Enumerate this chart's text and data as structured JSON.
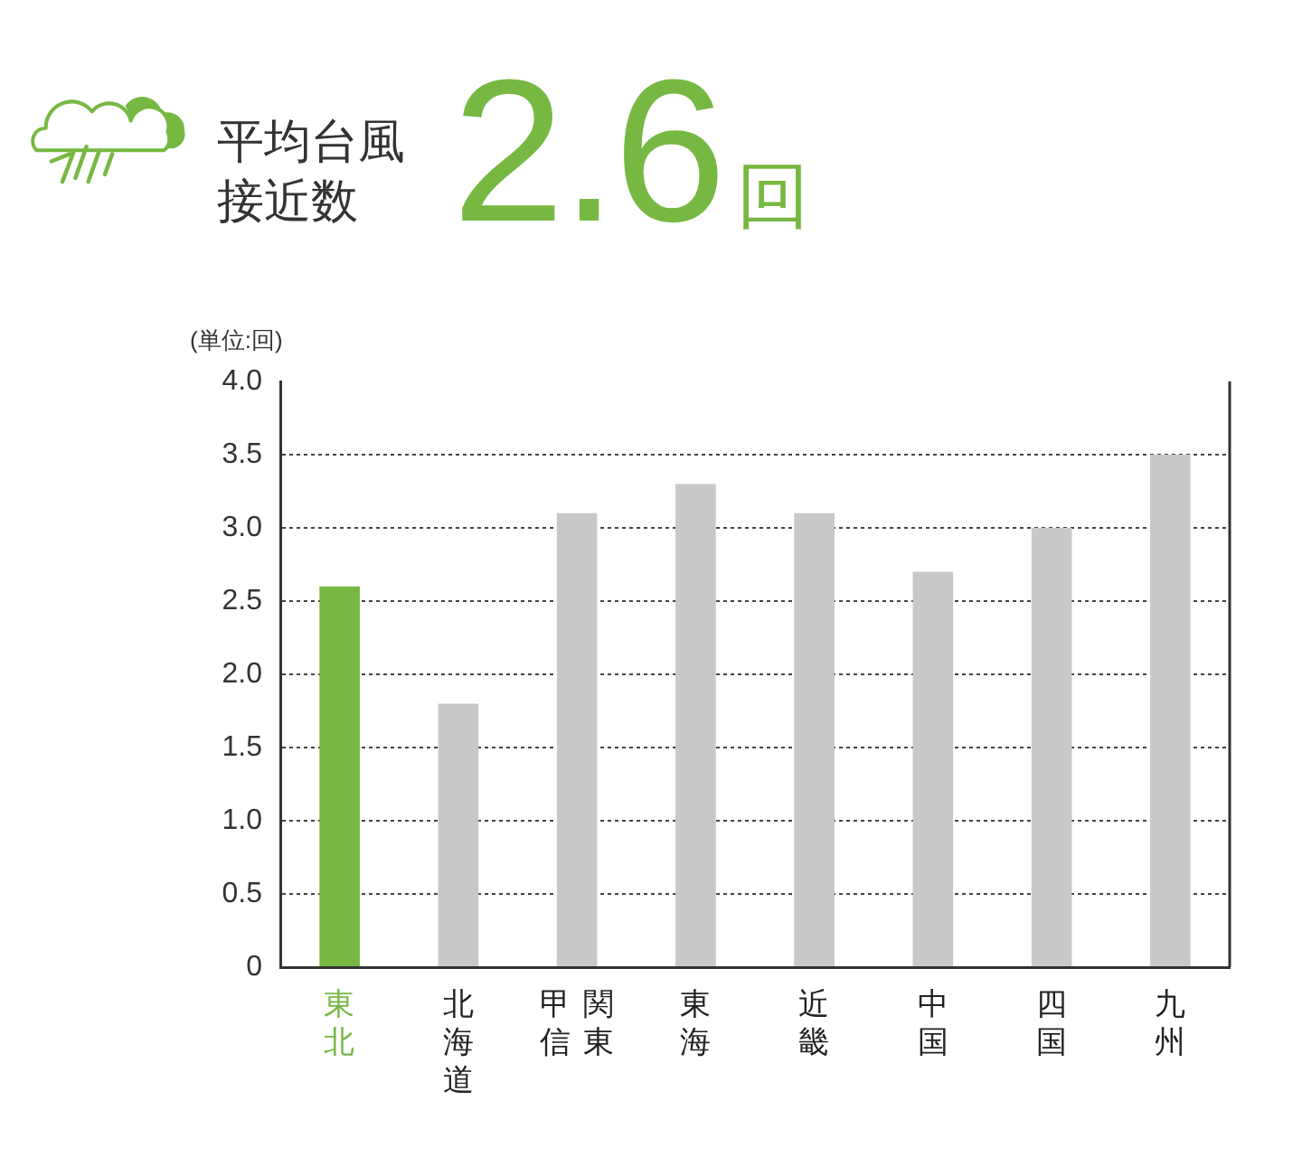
{
  "chart_data": {
    "type": "bar",
    "title": "平均台風接近数",
    "subtitle": "2.6回",
    "ylabel": "(単位:回)",
    "categories": [
      "東北",
      "北海道",
      "関東甲信",
      "東海",
      "近畿",
      "中国",
      "四国",
      "九州"
    ],
    "values": [
      2.6,
      1.8,
      3.1,
      3.3,
      3.1,
      2.7,
      3.0,
      3.5
    ],
    "colors": [
      "#77b843",
      "#c8c8c8",
      "#c8c8c8",
      "#c8c8c8",
      "#c8c8c8",
      "#c8c8c8",
      "#c8c8c8",
      "#c8c8c8"
    ],
    "ylim": [
      0,
      4
    ],
    "yticks": [
      0,
      0.5,
      {
        "value": 1,
        "label": "1.0"
      },
      1.5,
      {
        "value": 2,
        "label": "2.0"
      },
      2.5,
      {
        "value": 3,
        "label": "3.0"
      },
      3.5,
      {
        "value": 4,
        "label": "4.0"
      }
    ],
    "grid": "y"
  }
}
